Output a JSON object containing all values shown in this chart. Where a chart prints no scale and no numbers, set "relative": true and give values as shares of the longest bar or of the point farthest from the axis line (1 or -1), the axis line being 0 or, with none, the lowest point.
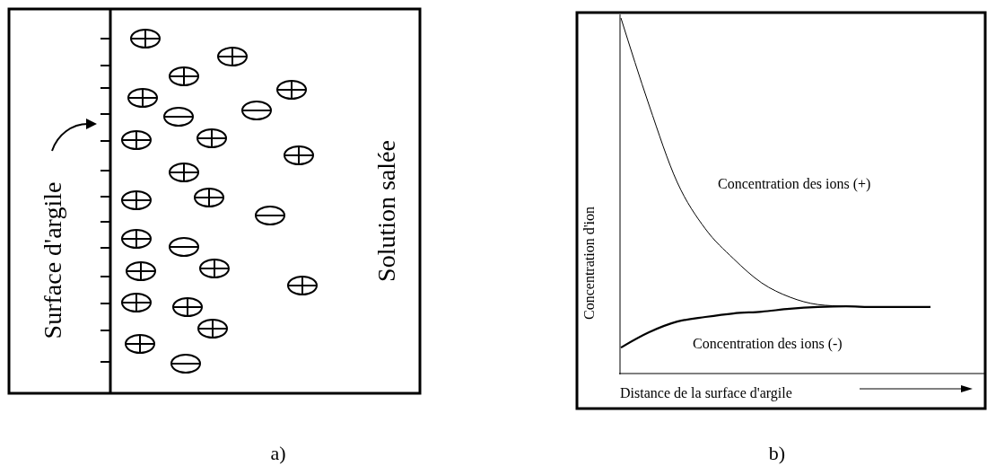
{
  "chart_data": [
    {
      "type": "other",
      "annotations": [
        "Surface d'argile",
        "Solution salée",
        "a)"
      ]
    },
    {
      "type": "line",
      "relative": true,
      "xlabel": "Distance de la surface d'argile",
      "ylabel": "Concentration d'ion",
      "annotations": [
        "b)"
      ],
      "categories": [
        null,
        null,
        null,
        null,
        null,
        null,
        null,
        null,
        null,
        null,
        null,
        null
      ],
      "series": [
        {
          "name": "Concentration des ions (+)",
          "color": "#000000",
          "values": [
            1,
            0.755,
            0.538,
            0.407,
            0.323,
            0.255,
            0.215,
            0.194,
            0.189,
            0.187,
            0.187,
            0.187
          ]
        },
        {
          "name": "Concentration des ions (-)",
          "color": "#000000",
          "values": [
            0.073,
            0.116,
            0.146,
            0.159,
            0.169,
            0.174,
            0.182,
            0.187,
            0.189,
            0.187,
            0.187,
            0.187
          ]
        }
      ]
    }
  ]
}
